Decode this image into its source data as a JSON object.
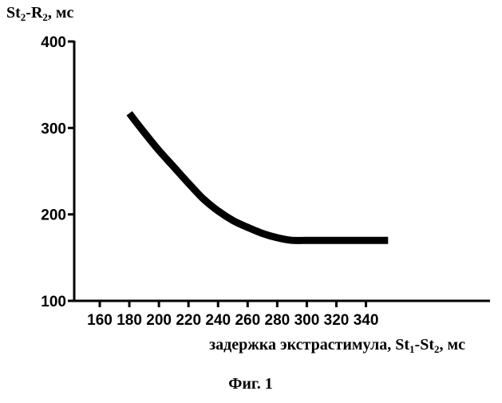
{
  "figure": {
    "caption": "Фиг. 1"
  },
  "chart_data": {
    "type": "line",
    "title": "",
    "ylabel": {
      "main": "St",
      "sub1": "2",
      "mid": "-R",
      "sub2": "2",
      "unit": ", мс"
    },
    "xlabel": {
      "main": "задержка экстрастимула, St",
      "sub1": "1",
      "mid": "-St",
      "sub2": "2",
      "unit": ", мс"
    },
    "xlim": [
      150,
      355
    ],
    "ylim": [
      100,
      400
    ],
    "x_ticks": [
      160,
      180,
      200,
      220,
      240,
      260,
      280,
      300,
      320,
      340
    ],
    "y_ticks": [
      100,
      200,
      300,
      400
    ],
    "grid": false,
    "legend": "none",
    "line_color": "#000000",
    "series": [
      {
        "x": [
          180,
          190,
          200,
          210,
          220,
          230,
          240,
          250,
          260,
          270,
          280,
          290,
          300,
          310,
          320,
          330,
          340,
          355
        ],
        "values": [
          317,
          295,
          274,
          255,
          236,
          218,
          204,
          193,
          185,
          178,
          173,
          170,
          170,
          170,
          170,
          170,
          170,
          170
        ]
      }
    ]
  }
}
